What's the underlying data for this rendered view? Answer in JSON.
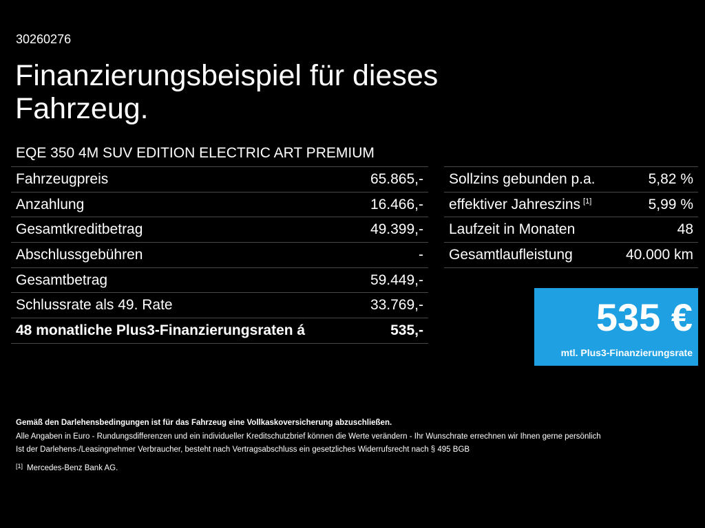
{
  "header": {
    "reference": "30260276",
    "title": "Finanzierungsbeispiel für dieses Fahrzeug.",
    "model": "EQE 350 4M SUV EDITION ELECTRIC ART PREMIUM"
  },
  "left_table": [
    {
      "label": "Fahrzeugpreis",
      "value": "65.865,-"
    },
    {
      "label": "Anzahlung",
      "value": "16.466,-"
    },
    {
      "label": "Gesamtkreditbetrag",
      "value": "49.399,-"
    },
    {
      "label": "Abschlussgebühren",
      "value": "-"
    },
    {
      "label": "Gesamtbetrag",
      "value": "59.449,-"
    },
    {
      "label": "Schlussrate als 49. Rate",
      "value": "33.769,-"
    },
    {
      "label": "48 monatliche Plus3-Finanzierungsraten á",
      "value": "535,-"
    }
  ],
  "right_table": [
    {
      "label": "Sollzins gebunden p.a.",
      "value": "5,82 %"
    },
    {
      "label": "effektiver Jahreszins",
      "footnote": "[1]",
      "value": "5,99 %"
    },
    {
      "label": "Laufzeit in Monaten",
      "value": "48"
    },
    {
      "label": "Gesamtlaufleistung",
      "value": "40.000 km"
    }
  ],
  "rate_box": {
    "amount": "535 €",
    "caption": "mtl. Plus3-Finanzierungsrate",
    "color": "#1fa0e3"
  },
  "notes": {
    "insurance": "Gemäß den Darlehensbedingungen ist für das Fahrzeug eine Vollkaskoversicherung abzuschließen.",
    "line1": "Alle Angaben in Euro - Rundungsdifferenzen und ein individueller Kreditschutzbrief können die Werte verändern - Ihr Wunschrate errechnen wir Ihnen gerne persönlich",
    "line2": "Ist der Darlehens-/Leasingnehmer Verbraucher, besteht nach Vertragsabschluss ein gesetzliches Widerrufsrecht nach § 495 BGB",
    "footnote_mark": "[1]",
    "footnote_text": "Mercedes-Benz Bank AG."
  }
}
